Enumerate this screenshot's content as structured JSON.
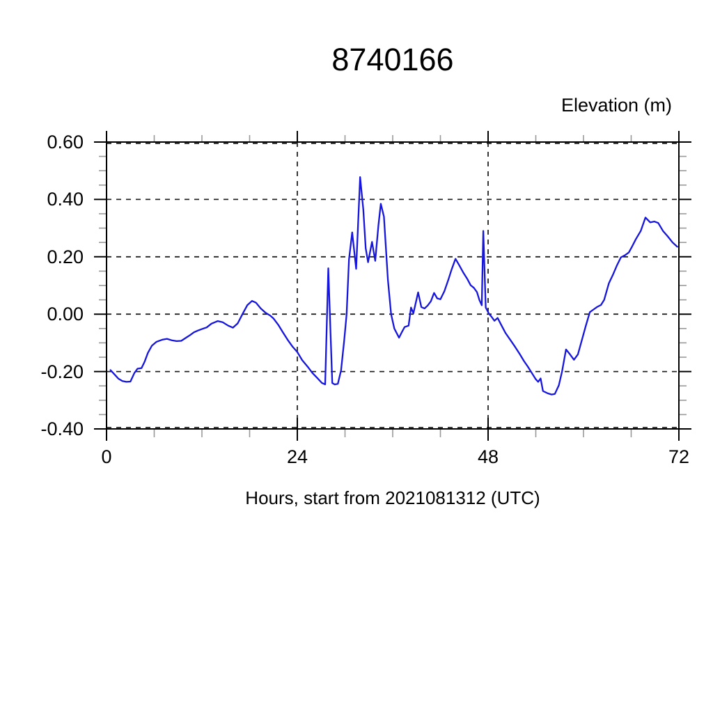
{
  "page": {
    "title": "8740166",
    "right_axis_label": "Elevation (m)",
    "x_axis_label": "Hours, start from 2021081312 (UTC)"
  },
  "chart_data": {
    "type": "line",
    "title": "8740166",
    "ylabel_right": "Elevation (m)",
    "xlabel": "Hours, start from 2021081312 (UTC)",
    "xlim": [
      0,
      72
    ],
    "ylim": [
      -0.4,
      0.6
    ],
    "grid": "dashed",
    "legend": "none",
    "x_ticks": [
      {
        "value": 0,
        "label": "0"
      },
      {
        "value": 24,
        "label": "24"
      },
      {
        "value": 48,
        "label": "48"
      },
      {
        "value": 72,
        "label": "72"
      }
    ],
    "x_minor_ticks": [
      6,
      12,
      18,
      30,
      36,
      42,
      54,
      60,
      66
    ],
    "y_ticks": [
      {
        "value": 0.6,
        "label": "0.60"
      },
      {
        "value": 0.4,
        "label": "0.40"
      },
      {
        "value": 0.2,
        "label": "0.20"
      },
      {
        "value": 0.0,
        "label": "0.00"
      },
      {
        "value": -0.2,
        "label": "-0.20"
      },
      {
        "value": -0.4,
        "label": "-0.40"
      }
    ],
    "y_minor_ticks": [
      0.55,
      0.5,
      0.45,
      0.35,
      0.3,
      0.25,
      0.15,
      0.1,
      0.05,
      -0.05,
      -0.1,
      -0.15,
      -0.25,
      -0.3,
      -0.35
    ],
    "line_color": "#1515dd",
    "axis_color": "#000000",
    "minor_tick_color": "#999999",
    "series": [
      {
        "name": "elevation_m",
        "x": [
          0.5,
          1,
          1.5,
          2,
          2.5,
          3,
          3.5,
          3.9,
          4.4,
          4.8,
          5.2,
          5.7,
          6.3,
          7,
          7.6,
          8.2,
          8.8,
          9.4,
          10,
          10.5,
          11,
          11.5,
          12,
          12.6,
          13.2,
          14,
          14.6,
          15.3,
          15.9,
          16.5,
          17.1,
          17.7,
          18.3,
          18.8,
          19.4,
          20,
          20.6,
          21,
          21.6,
          22.2,
          22.8,
          23.4,
          24,
          24.6,
          25.3,
          25.9,
          26.5,
          27.1,
          27.5,
          27.9,
          28.4,
          28.7,
          29.1,
          29.5,
          29.9,
          30.2,
          30.5,
          30.9,
          31.4,
          31.9,
          32.3,
          32.6,
          32.9,
          33.4,
          33.8,
          34.2,
          34.5,
          34.9,
          35.4,
          35.8,
          36.2,
          36.8,
          37.2,
          37.5,
          38,
          38.3,
          38.6,
          39.2,
          39.6,
          40,
          40.4,
          40.8,
          41.2,
          41.6,
          42,
          42.5,
          43,
          43.4,
          43.9,
          44.4,
          44.9,
          45.4,
          45.8,
          46.2,
          46.6,
          46.9,
          47.2,
          47.4,
          47.7,
          48.1,
          48.4,
          48.8,
          49.2,
          49.7,
          50.2,
          50.8,
          51.4,
          52,
          52.5,
          53,
          53.5,
          54,
          54.3,
          54.6,
          54.9,
          55.5,
          56,
          56.4,
          56.9,
          57.3,
          57.8,
          58.3,
          58.8,
          59.3,
          59.8,
          60.3,
          60.8,
          61.2,
          61.7,
          62.2,
          62.6,
          63.2,
          63.7,
          64.2,
          64.7,
          65.2,
          65.7,
          66.1,
          66.6,
          67.2,
          67.8,
          68.4,
          68.9,
          69.4,
          70,
          70.6,
          71.2,
          71.8
        ],
        "y": [
          -0.195,
          -0.21,
          -0.225,
          -0.233,
          -0.236,
          -0.235,
          -0.205,
          -0.19,
          -0.188,
          -0.165,
          -0.135,
          -0.11,
          -0.096,
          -0.089,
          -0.086,
          -0.091,
          -0.094,
          -0.093,
          -0.082,
          -0.073,
          -0.063,
          -0.057,
          -0.052,
          -0.046,
          -0.033,
          -0.024,
          -0.028,
          -0.04,
          -0.047,
          -0.032,
          0.0,
          0.031,
          0.046,
          0.04,
          0.02,
          0.005,
          -0.005,
          -0.015,
          -0.037,
          -0.064,
          -0.09,
          -0.113,
          -0.132,
          -0.16,
          -0.183,
          -0.205,
          -0.222,
          -0.24,
          -0.245,
          0.16,
          -0.24,
          -0.245,
          -0.243,
          -0.196,
          -0.09,
          0.0,
          0.19,
          0.285,
          0.158,
          0.478,
          0.364,
          0.23,
          0.181,
          0.252,
          0.186,
          0.31,
          0.385,
          0.34,
          0.12,
          0.0,
          -0.05,
          -0.082,
          -0.06,
          -0.045,
          -0.04,
          0.023,
          0.003,
          0.076,
          0.025,
          0.02,
          0.03,
          0.045,
          0.074,
          0.055,
          0.052,
          0.08,
          0.12,
          0.155,
          0.193,
          0.169,
          0.144,
          0.122,
          0.101,
          0.092,
          0.077,
          0.05,
          0.031,
          0.29,
          0.023,
          0.002,
          -0.008,
          -0.023,
          -0.013,
          -0.04,
          -0.066,
          -0.09,
          -0.114,
          -0.14,
          -0.163,
          -0.183,
          -0.205,
          -0.227,
          -0.236,
          -0.224,
          -0.268,
          -0.276,
          -0.28,
          -0.278,
          -0.248,
          -0.2,
          -0.123,
          -0.14,
          -0.159,
          -0.14,
          -0.09,
          -0.04,
          0.007,
          0.015,
          0.025,
          0.032,
          0.05,
          0.108,
          0.137,
          0.17,
          0.198,
          0.205,
          0.215,
          0.235,
          0.262,
          0.29,
          0.337,
          0.32,
          0.323,
          0.318,
          0.29,
          0.271,
          0.25,
          0.235
        ]
      }
    ]
  }
}
